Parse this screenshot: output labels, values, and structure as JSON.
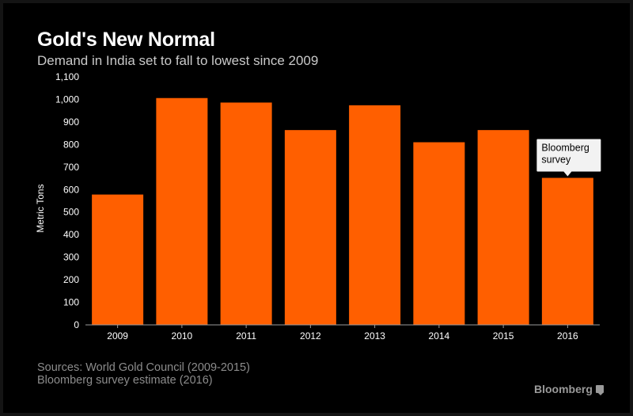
{
  "chart_data": {
    "type": "bar",
    "title": "Gold's New Normal",
    "subtitle": "Demand in India set to fall to lowest since 2009",
    "categories": [
      "2009",
      "2010",
      "2011",
      "2012",
      "2013",
      "2014",
      "2015",
      "2016"
    ],
    "values": [
      578,
      1006,
      986,
      864,
      974,
      810,
      864,
      652
    ],
    "ylabel": "Metric Tons",
    "xlabel": "",
    "ylim": [
      0,
      1100
    ],
    "yticks": [
      "0",
      "100",
      "200",
      "300",
      "400",
      "500",
      "600",
      "700",
      "800",
      "900",
      "1,000",
      "1,100"
    ],
    "bar_color": "#ff5f00",
    "annotation": {
      "category": "2016",
      "lines": [
        "Bloomberg",
        "survey"
      ]
    },
    "grid": false
  },
  "footer": {
    "sources_line1": "Sources: World Gold Council (2009-2015)",
    "sources_line2": "Bloomberg survey estimate (2016)",
    "brand": "Bloomberg"
  }
}
